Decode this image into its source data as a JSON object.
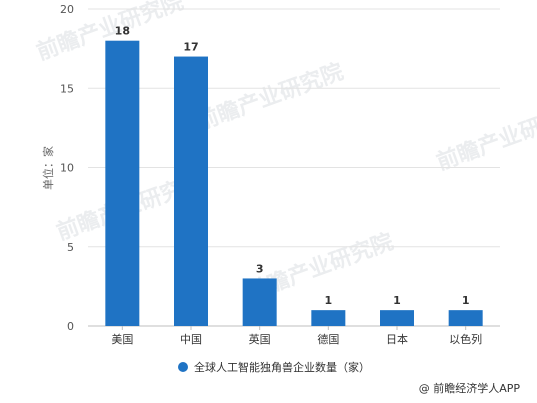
{
  "chart_data": {
    "type": "bar",
    "categories": [
      "美国",
      "中国",
      "英国",
      "德国",
      "日本",
      "以色列"
    ],
    "series": [
      {
        "name": "全球人工智能独角兽企业数量（家）",
        "values": [
          18,
          17,
          3,
          1,
          1,
          1
        ]
      }
    ],
    "ylabel": "单位：家",
    "ylim": [
      0,
      20
    ],
    "yticks": [
      0,
      5,
      10,
      15,
      20
    ],
    "grid": true,
    "legend": "bottom-center",
    "bar_color": "#1f73c4"
  },
  "watermark": "前瞻产业研究院",
  "credit": "@ 前瞻经济学人APP"
}
